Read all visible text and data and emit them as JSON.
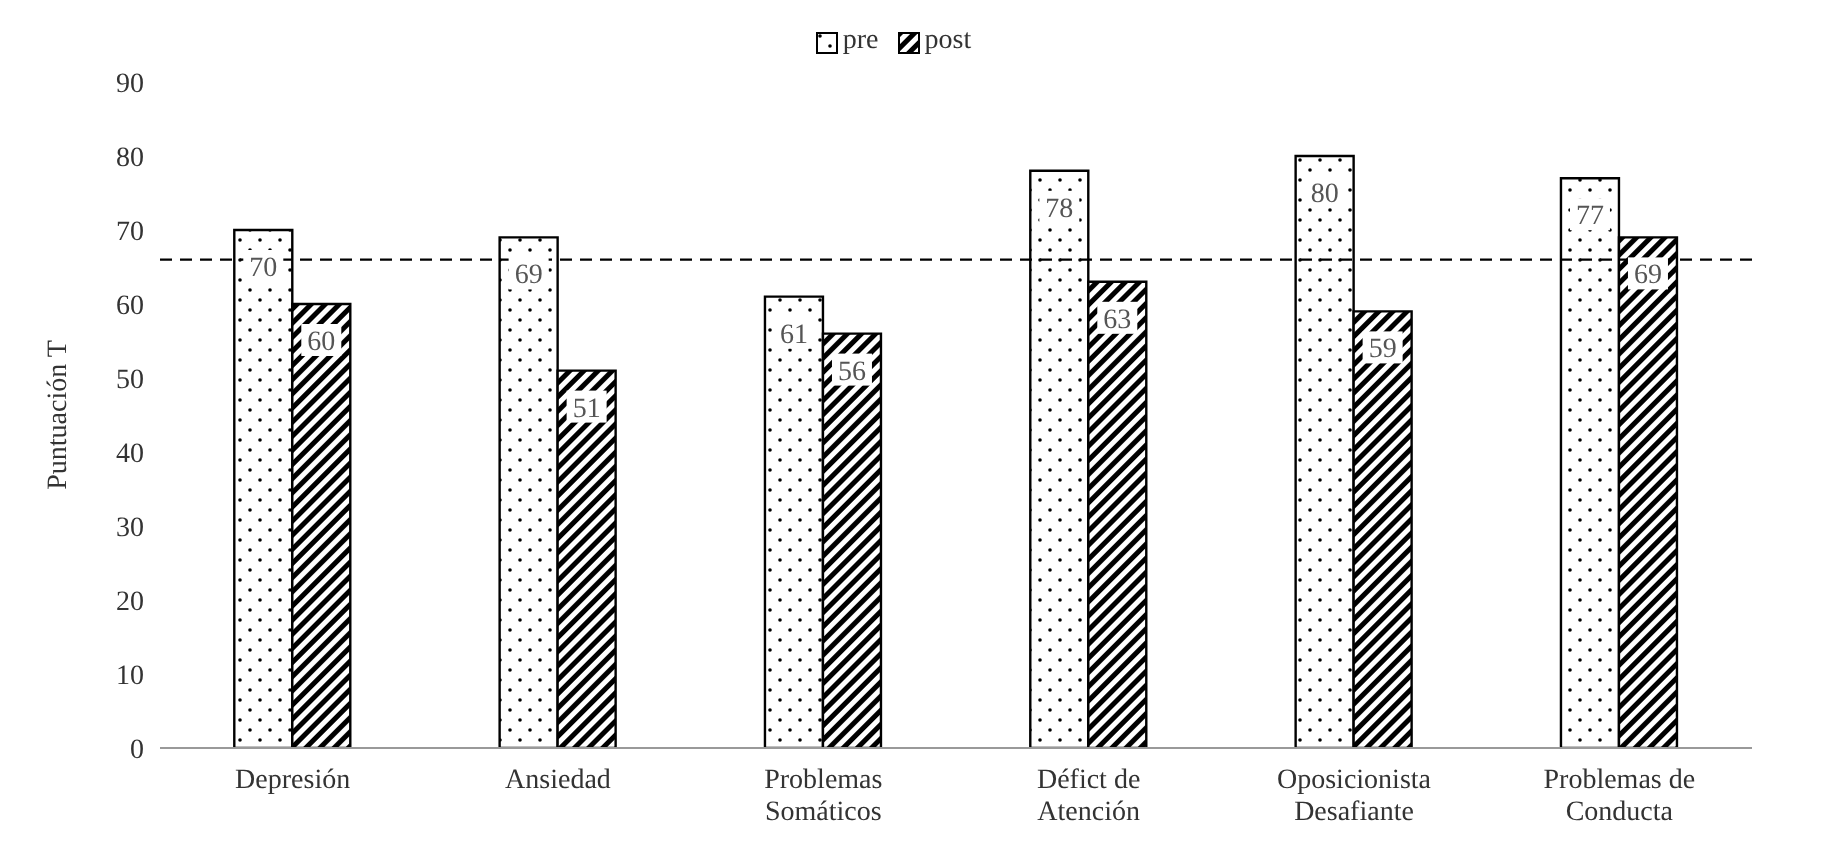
{
  "chart_data": {
    "type": "bar",
    "ylabel": "Puntuación T",
    "categories": [
      "Depresión",
      "Ansiedad",
      "Problemas Somáticos",
      "Défict de Atención",
      "Oposicionista Desafiante",
      "Problemas de Conducta"
    ],
    "series": [
      {
        "name": "pre",
        "color": "#000000",
        "values": [
          70,
          69,
          61,
          78,
          80,
          77
        ]
      },
      {
        "name": "post",
        "color": "#000000",
        "values": [
          60,
          51,
          56,
          63,
          59,
          69
        ]
      }
    ],
    "ylim": [
      0,
      90
    ],
    "yticks": [
      0,
      10,
      20,
      30,
      40,
      50,
      60,
      70,
      80,
      90
    ],
    "grid": false,
    "legend": "top",
    "data_labels": true,
    "ref_lines": [
      {
        "axis": "y",
        "value": 66,
        "line_style": "dashed",
        "color": "#000000"
      }
    ]
  }
}
